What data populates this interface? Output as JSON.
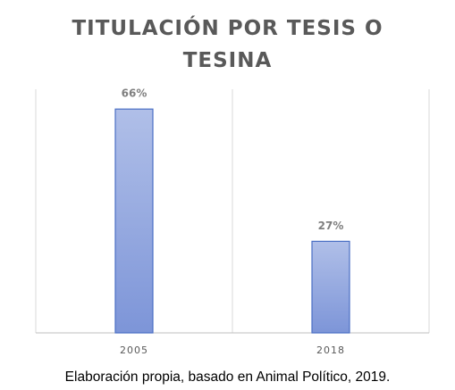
{
  "chart_data": {
    "type": "bar",
    "title": "TITULACIÓN POR TESIS O TESINA",
    "categories": [
      "2005",
      "2018"
    ],
    "values": [
      66,
      27
    ],
    "value_labels": [
      "66%",
      "27%"
    ],
    "color": "#8fa4dd",
    "ylim": [
      0,
      70
    ],
    "caption": "Elaboración propia, basado en Animal Político, 2019."
  }
}
